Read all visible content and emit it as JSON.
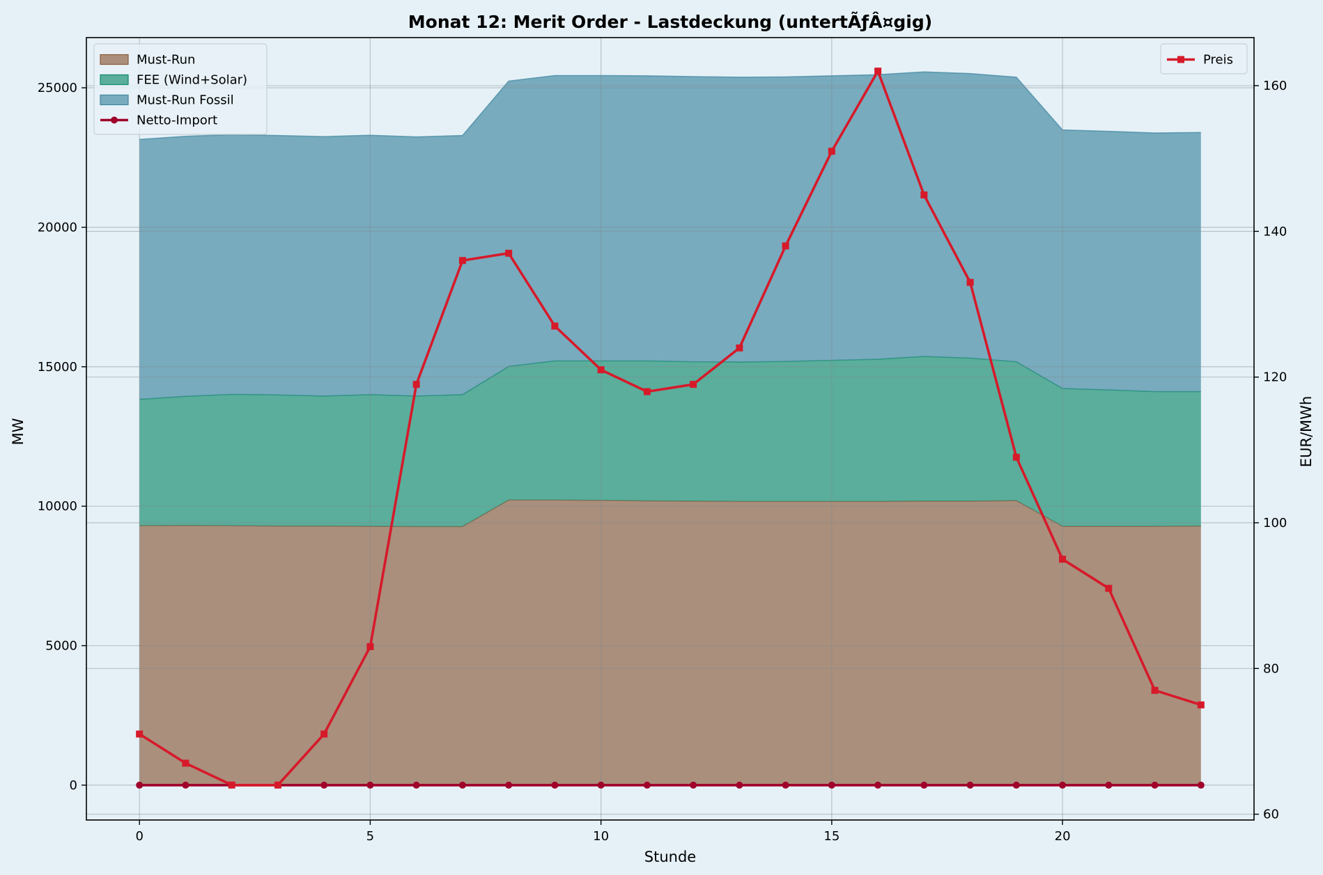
{
  "chart_data": {
    "type": "area",
    "title": "Monat 12: Merit Order - Lastdeckung (untertÃƒÂ¤gig)",
    "xlabel": "Stunde",
    "ylabel": "MW",
    "y2label": "EUR/MWh",
    "x": [
      0,
      1,
      2,
      3,
      4,
      5,
      6,
      7,
      8,
      9,
      10,
      11,
      12,
      13,
      14,
      15,
      16,
      17,
      18,
      19,
      20,
      21,
      22,
      23
    ],
    "xlim": [
      -1.15,
      24.15
    ],
    "ylim": [
      -1250,
      26800
    ],
    "y2lim": [
      59.2,
      166.6
    ],
    "xticks": [
      "0",
      "5",
      "10",
      "15",
      "20"
    ],
    "xtick_values": [
      0,
      5,
      10,
      15,
      20
    ],
    "yticks": [
      "0",
      "5000",
      "10000",
      "15000",
      "20000",
      "25000"
    ],
    "ytick_values": [
      0,
      5000,
      10000,
      15000,
      20000,
      25000
    ],
    "y2ticks": [
      "60",
      "80",
      "100",
      "120",
      "140",
      "160"
    ],
    "y2tick_values": [
      60,
      80,
      100,
      120,
      140,
      160
    ],
    "grid": true,
    "stacked_series": [
      {
        "name": "Must-Run",
        "color": "#8b5a3a",
        "values": [
          9300,
          9310,
          9300,
          9290,
          9290,
          9280,
          9270,
          9270,
          10220,
          10220,
          10210,
          10190,
          10180,
          10170,
          10170,
          10170,
          10170,
          10180,
          10180,
          10200,
          9280,
          9280,
          9280,
          9290
        ]
      },
      {
        "name": "FEE (Wind+Solar)",
        "color": "#0f8a6a",
        "values": [
          4530,
          4630,
          4710,
          4700,
          4660,
          4720,
          4680,
          4730,
          4790,
          4990,
          5000,
          5020,
          5000,
          5000,
          5020,
          5060,
          5100,
          5190,
          5130,
          4980,
          4940,
          4890,
          4830,
          4820
        ]
      },
      {
        "name": "Must-Run Fossil",
        "color": "#3e86a0",
        "values": [
          9320,
          9320,
          9310,
          9300,
          9300,
          9300,
          9290,
          9290,
          10230,
          10230,
          10230,
          10220,
          10220,
          10210,
          10200,
          10200,
          10200,
          10200,
          10200,
          10200,
          9270,
          9270,
          9270,
          9290
        ]
      }
    ],
    "line_series": [
      {
        "name": "Netto-Import",
        "color": "#a0002a",
        "marker": "circle",
        "axis": "left",
        "values": [
          0,
          0,
          0,
          0,
          0,
          0,
          0,
          0,
          0,
          0,
          0,
          0,
          0,
          0,
          0,
          0,
          0,
          0,
          0,
          0,
          0,
          0,
          0,
          0
        ]
      },
      {
        "name": "Preis",
        "color": "#d61a2a",
        "marker": "square",
        "axis": "right",
        "values": [
          71,
          67,
          64,
          64,
          71,
          83,
          119,
          136,
          137,
          127,
          121,
          118,
          119,
          124,
          138,
          151,
          162,
          145,
          133,
          109,
          95,
          91,
          77,
          75
        ]
      }
    ],
    "legend_left": [
      "Must-Run",
      "FEE (Wind+Solar)",
      "Must-Run Fossil",
      "Netto-Import"
    ],
    "legend_right": [
      "Preis"
    ],
    "legend_left_placement": "upper-left",
    "legend_right_placement": "upper-right"
  }
}
